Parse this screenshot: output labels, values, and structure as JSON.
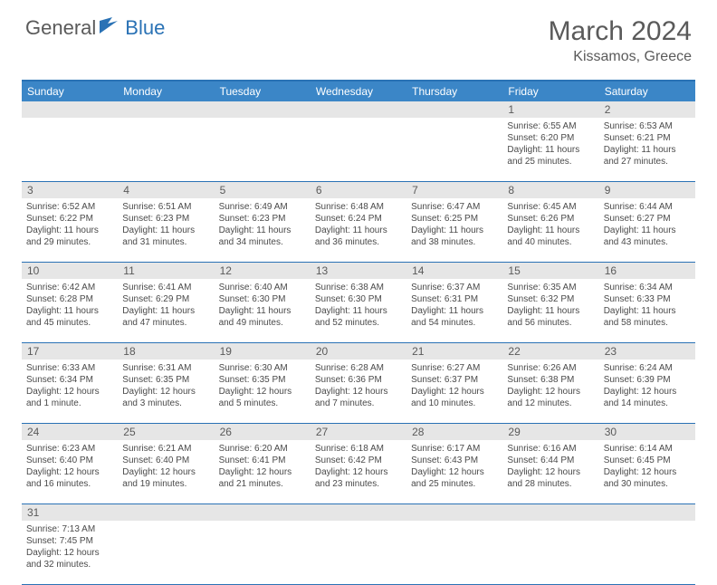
{
  "brand": {
    "part1": "General",
    "part2": "Blue"
  },
  "title": "March 2024",
  "location": "Kissamos, Greece",
  "colors": {
    "header_bg": "#3b86c7",
    "header_text": "#ffffff",
    "border": "#2a72b5",
    "daynum_bg": "#e6e6e6",
    "text": "#4a4a4a",
    "title": "#5a5a5a"
  },
  "weekdays": [
    "Sunday",
    "Monday",
    "Tuesday",
    "Wednesday",
    "Thursday",
    "Friday",
    "Saturday"
  ],
  "weeks": [
    [
      {
        "num": "",
        "sunrise": "",
        "sunset": "",
        "daylight": ""
      },
      {
        "num": "",
        "sunrise": "",
        "sunset": "",
        "daylight": ""
      },
      {
        "num": "",
        "sunrise": "",
        "sunset": "",
        "daylight": ""
      },
      {
        "num": "",
        "sunrise": "",
        "sunset": "",
        "daylight": ""
      },
      {
        "num": "",
        "sunrise": "",
        "sunset": "",
        "daylight": ""
      },
      {
        "num": "1",
        "sunrise": "Sunrise: 6:55 AM",
        "sunset": "Sunset: 6:20 PM",
        "daylight": "Daylight: 11 hours and 25 minutes."
      },
      {
        "num": "2",
        "sunrise": "Sunrise: 6:53 AM",
        "sunset": "Sunset: 6:21 PM",
        "daylight": "Daylight: 11 hours and 27 minutes."
      }
    ],
    [
      {
        "num": "3",
        "sunrise": "Sunrise: 6:52 AM",
        "sunset": "Sunset: 6:22 PM",
        "daylight": "Daylight: 11 hours and 29 minutes."
      },
      {
        "num": "4",
        "sunrise": "Sunrise: 6:51 AM",
        "sunset": "Sunset: 6:23 PM",
        "daylight": "Daylight: 11 hours and 31 minutes."
      },
      {
        "num": "5",
        "sunrise": "Sunrise: 6:49 AM",
        "sunset": "Sunset: 6:23 PM",
        "daylight": "Daylight: 11 hours and 34 minutes."
      },
      {
        "num": "6",
        "sunrise": "Sunrise: 6:48 AM",
        "sunset": "Sunset: 6:24 PM",
        "daylight": "Daylight: 11 hours and 36 minutes."
      },
      {
        "num": "7",
        "sunrise": "Sunrise: 6:47 AM",
        "sunset": "Sunset: 6:25 PM",
        "daylight": "Daylight: 11 hours and 38 minutes."
      },
      {
        "num": "8",
        "sunrise": "Sunrise: 6:45 AM",
        "sunset": "Sunset: 6:26 PM",
        "daylight": "Daylight: 11 hours and 40 minutes."
      },
      {
        "num": "9",
        "sunrise": "Sunrise: 6:44 AM",
        "sunset": "Sunset: 6:27 PM",
        "daylight": "Daylight: 11 hours and 43 minutes."
      }
    ],
    [
      {
        "num": "10",
        "sunrise": "Sunrise: 6:42 AM",
        "sunset": "Sunset: 6:28 PM",
        "daylight": "Daylight: 11 hours and 45 minutes."
      },
      {
        "num": "11",
        "sunrise": "Sunrise: 6:41 AM",
        "sunset": "Sunset: 6:29 PM",
        "daylight": "Daylight: 11 hours and 47 minutes."
      },
      {
        "num": "12",
        "sunrise": "Sunrise: 6:40 AM",
        "sunset": "Sunset: 6:30 PM",
        "daylight": "Daylight: 11 hours and 49 minutes."
      },
      {
        "num": "13",
        "sunrise": "Sunrise: 6:38 AM",
        "sunset": "Sunset: 6:30 PM",
        "daylight": "Daylight: 11 hours and 52 minutes."
      },
      {
        "num": "14",
        "sunrise": "Sunrise: 6:37 AM",
        "sunset": "Sunset: 6:31 PM",
        "daylight": "Daylight: 11 hours and 54 minutes."
      },
      {
        "num": "15",
        "sunrise": "Sunrise: 6:35 AM",
        "sunset": "Sunset: 6:32 PM",
        "daylight": "Daylight: 11 hours and 56 minutes."
      },
      {
        "num": "16",
        "sunrise": "Sunrise: 6:34 AM",
        "sunset": "Sunset: 6:33 PM",
        "daylight": "Daylight: 11 hours and 58 minutes."
      }
    ],
    [
      {
        "num": "17",
        "sunrise": "Sunrise: 6:33 AM",
        "sunset": "Sunset: 6:34 PM",
        "daylight": "Daylight: 12 hours and 1 minute."
      },
      {
        "num": "18",
        "sunrise": "Sunrise: 6:31 AM",
        "sunset": "Sunset: 6:35 PM",
        "daylight": "Daylight: 12 hours and 3 minutes."
      },
      {
        "num": "19",
        "sunrise": "Sunrise: 6:30 AM",
        "sunset": "Sunset: 6:35 PM",
        "daylight": "Daylight: 12 hours and 5 minutes."
      },
      {
        "num": "20",
        "sunrise": "Sunrise: 6:28 AM",
        "sunset": "Sunset: 6:36 PM",
        "daylight": "Daylight: 12 hours and 7 minutes."
      },
      {
        "num": "21",
        "sunrise": "Sunrise: 6:27 AM",
        "sunset": "Sunset: 6:37 PM",
        "daylight": "Daylight: 12 hours and 10 minutes."
      },
      {
        "num": "22",
        "sunrise": "Sunrise: 6:26 AM",
        "sunset": "Sunset: 6:38 PM",
        "daylight": "Daylight: 12 hours and 12 minutes."
      },
      {
        "num": "23",
        "sunrise": "Sunrise: 6:24 AM",
        "sunset": "Sunset: 6:39 PM",
        "daylight": "Daylight: 12 hours and 14 minutes."
      }
    ],
    [
      {
        "num": "24",
        "sunrise": "Sunrise: 6:23 AM",
        "sunset": "Sunset: 6:40 PM",
        "daylight": "Daylight: 12 hours and 16 minutes."
      },
      {
        "num": "25",
        "sunrise": "Sunrise: 6:21 AM",
        "sunset": "Sunset: 6:40 PM",
        "daylight": "Daylight: 12 hours and 19 minutes."
      },
      {
        "num": "26",
        "sunrise": "Sunrise: 6:20 AM",
        "sunset": "Sunset: 6:41 PM",
        "daylight": "Daylight: 12 hours and 21 minutes."
      },
      {
        "num": "27",
        "sunrise": "Sunrise: 6:18 AM",
        "sunset": "Sunset: 6:42 PM",
        "daylight": "Daylight: 12 hours and 23 minutes."
      },
      {
        "num": "28",
        "sunrise": "Sunrise: 6:17 AM",
        "sunset": "Sunset: 6:43 PM",
        "daylight": "Daylight: 12 hours and 25 minutes."
      },
      {
        "num": "29",
        "sunrise": "Sunrise: 6:16 AM",
        "sunset": "Sunset: 6:44 PM",
        "daylight": "Daylight: 12 hours and 28 minutes."
      },
      {
        "num": "30",
        "sunrise": "Sunrise: 6:14 AM",
        "sunset": "Sunset: 6:45 PM",
        "daylight": "Daylight: 12 hours and 30 minutes."
      }
    ],
    [
      {
        "num": "31",
        "sunrise": "Sunrise: 7:13 AM",
        "sunset": "Sunset: 7:45 PM",
        "daylight": "Daylight: 12 hours and 32 minutes."
      },
      {
        "num": "",
        "sunrise": "",
        "sunset": "",
        "daylight": ""
      },
      {
        "num": "",
        "sunrise": "",
        "sunset": "",
        "daylight": ""
      },
      {
        "num": "",
        "sunrise": "",
        "sunset": "",
        "daylight": ""
      },
      {
        "num": "",
        "sunrise": "",
        "sunset": "",
        "daylight": ""
      },
      {
        "num": "",
        "sunrise": "",
        "sunset": "",
        "daylight": ""
      },
      {
        "num": "",
        "sunrise": "",
        "sunset": "",
        "daylight": ""
      }
    ]
  ]
}
